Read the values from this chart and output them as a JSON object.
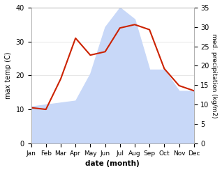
{
  "months": [
    "Jan",
    "Feb",
    "Mar",
    "Apr",
    "May",
    "Jun",
    "Jul",
    "Aug",
    "Sep",
    "Oct",
    "Nov",
    "Dec"
  ],
  "max_temp": [
    10.5,
    10.0,
    19.0,
    31.0,
    26.0,
    27.0,
    34.0,
    35.0,
    33.5,
    22.0,
    17.0,
    15.5
  ],
  "precipitation": [
    9.5,
    10.0,
    10.5,
    11.0,
    18.0,
    30.0,
    35.0,
    32.0,
    19.0,
    19.0,
    13.5,
    13.5
  ],
  "temp_ylim": [
    0,
    40
  ],
  "precip_ylim": [
    0,
    35
  ],
  "temp_fill_color": "#c8d8f8",
  "precip_line_color": "#cc2200",
  "xlabel": "date (month)",
  "ylabel_left": "max temp (C)",
  "ylabel_right": "med. precipitation (kg/m2)",
  "bg_color": "#ffffff",
  "plot_bg_color": "#ffffff"
}
